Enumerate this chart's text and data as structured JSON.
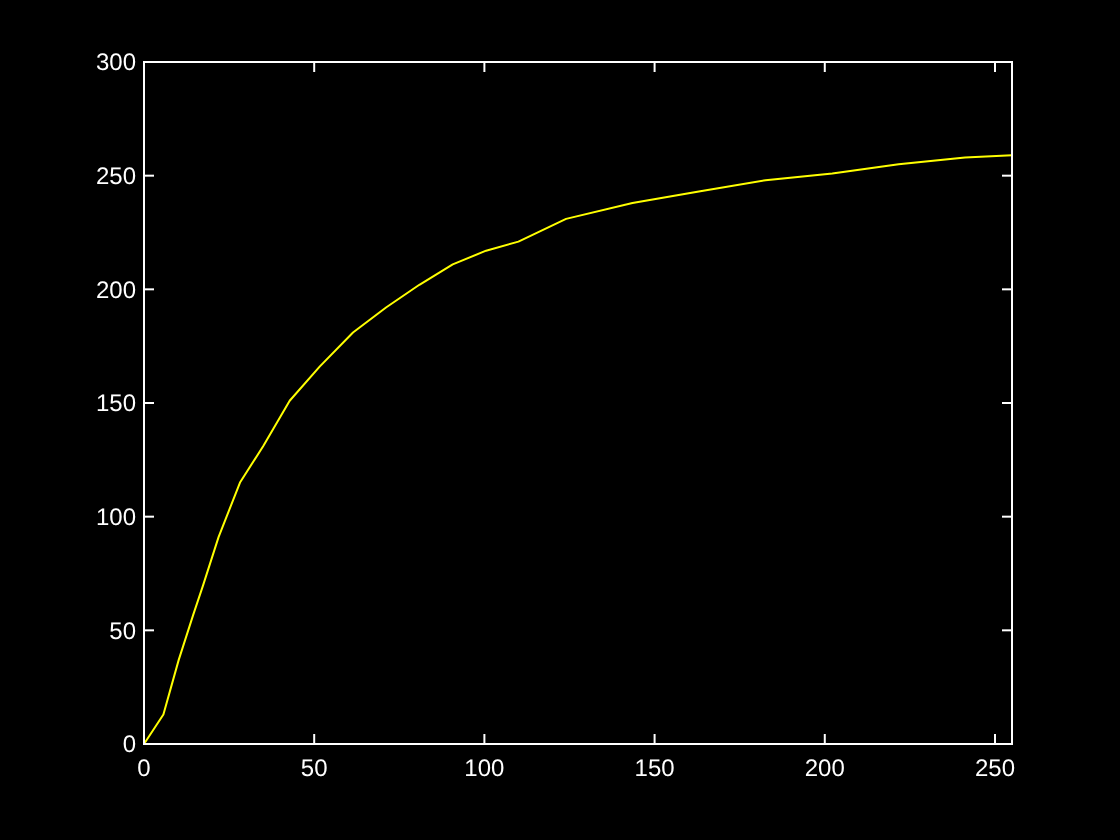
{
  "chart_data": {
    "type": "line",
    "x": [
      0,
      5.7,
      10.2,
      14.5,
      17.4,
      21.9,
      28.2,
      35,
      42.8,
      51.6,
      61.4,
      71.1,
      80.9,
      90.7,
      100.5,
      110,
      124,
      143.5,
      163,
      182.6,
      202.2,
      221.7,
      241.2,
      255
    ],
    "series": [
      {
        "color": "#ffff00",
        "values": [
          0,
          13,
          37,
          57,
          70,
          91,
          115,
          131,
          151,
          166,
          181,
          192,
          202,
          211,
          217,
          221,
          231,
          238,
          243,
          248,
          251,
          255,
          258,
          259
        ]
      }
    ],
    "xlim": [
      0,
      255
    ],
    "xticks": [
      0,
      50,
      100,
      150,
      200,
      250
    ],
    "ylim": [
      0,
      300
    ],
    "yticks": [
      0,
      50,
      100,
      150,
      200,
      250,
      300
    ]
  }
}
